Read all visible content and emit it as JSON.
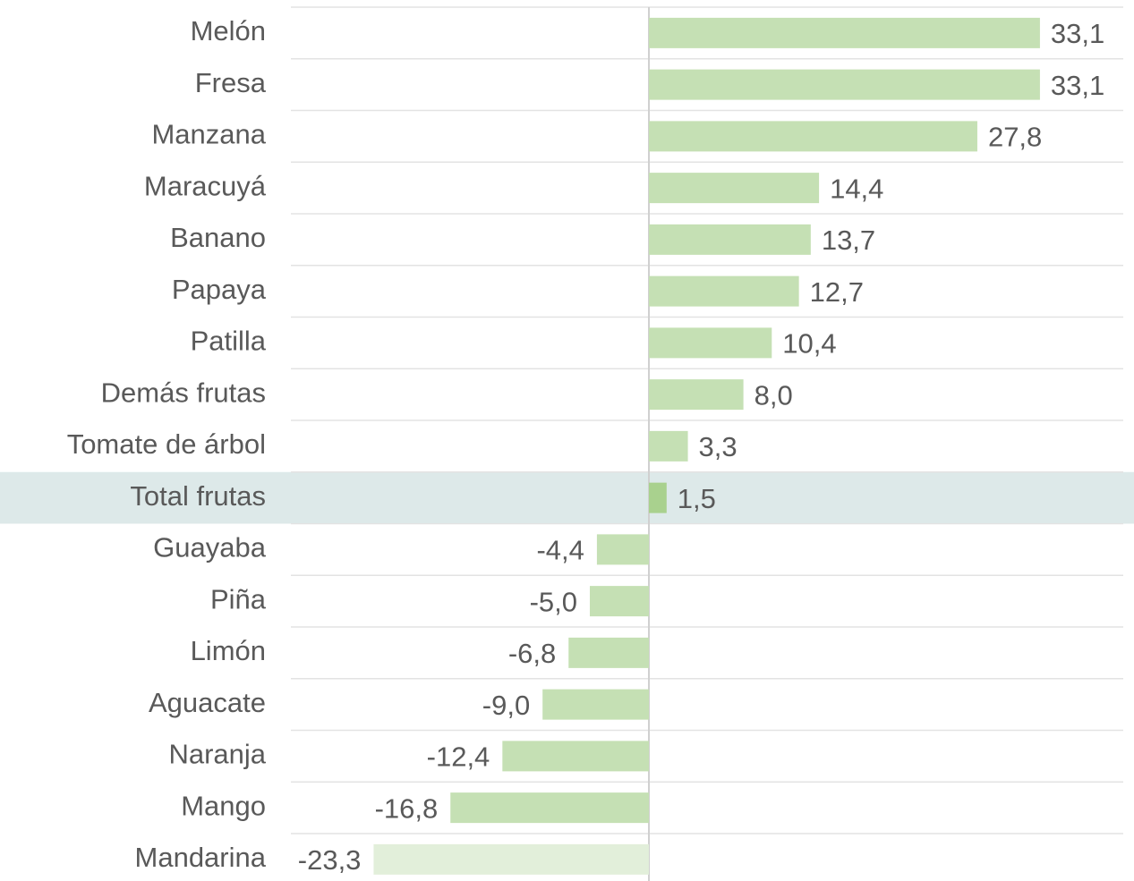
{
  "chart_data": {
    "type": "bar",
    "orientation": "horizontal",
    "categories": [
      "Melón",
      "Fresa",
      "Manzana",
      "Maracuyá",
      "Banano",
      "Papaya",
      "Patilla",
      "Demás frutas",
      "Tomate de árbol",
      "Total frutas",
      "Guayaba",
      "Piña",
      "Limón",
      "Aguacate",
      "Naranja",
      "Mango",
      "Mandarina"
    ],
    "values": [
      33.1,
      33.1,
      27.8,
      14.4,
      13.7,
      12.7,
      10.4,
      8.0,
      3.3,
      1.5,
      -4.4,
      -5.0,
      -6.8,
      -9.0,
      -12.4,
      -16.8,
      -23.3
    ],
    "value_labels": [
      "33,1",
      "33,1",
      "27,8",
      "14,4",
      "13,7",
      "12,7",
      "10,4",
      "8,0",
      "3,3",
      "1,5",
      "-4,4",
      "-5,0",
      "-6,8",
      "-9,0",
      "-12,4",
      "-16,8",
      "-23,3"
    ],
    "colors": [
      "#c5e0b4",
      "#c5e0b4",
      "#c5e0b4",
      "#c5e0b4",
      "#c5e0b4",
      "#c5e0b4",
      "#c5e0b4",
      "#c5e0b4",
      "#c5e0b4",
      "#a9d18e",
      "#c5e0b4",
      "#c5e0b4",
      "#c5e0b4",
      "#c5e0b4",
      "#c5e0b4",
      "#c5e0b4",
      "#e2efda"
    ],
    "highlight": 9,
    "highlight_color": "#dde9e9",
    "xlim": [
      -30,
      40
    ]
  }
}
